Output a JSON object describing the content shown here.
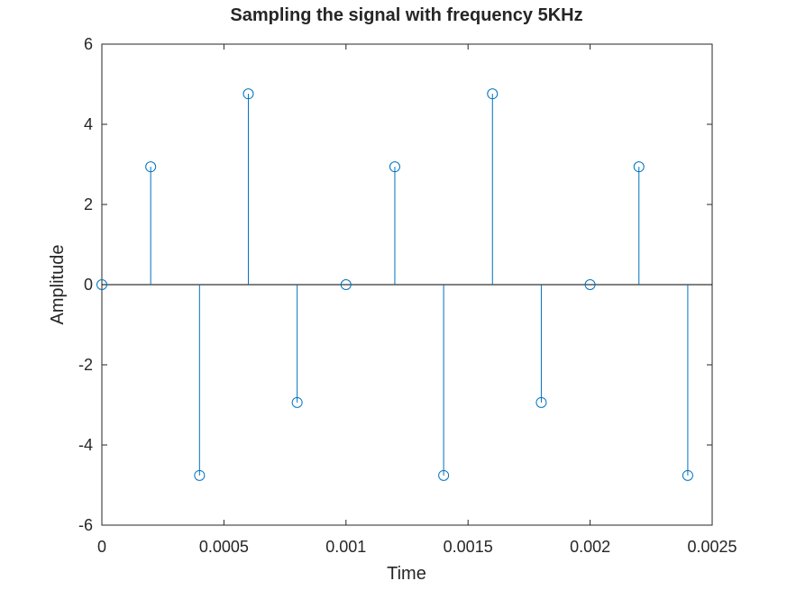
{
  "chart_data": {
    "type": "stem",
    "title": "Sampling the signal with frequency 5KHz",
    "xlabel": "Time",
    "ylabel": "Amplitude",
    "xlim": [
      0,
      0.0025
    ],
    "ylim": [
      -6,
      6
    ],
    "xticks": [
      "0",
      "0.0005",
      "0.001",
      "0.0015",
      "0.002",
      "0.0025"
    ],
    "yticks": [
      "-6",
      "-4",
      "-2",
      "0",
      "2",
      "4",
      "6"
    ],
    "grid": false,
    "baseline": 0,
    "series": [
      {
        "x": [
          0,
          0.0002,
          0.0004,
          0.0006,
          0.0008,
          0.001,
          0.0012,
          0.0014,
          0.0016,
          0.0018,
          0.002,
          0.0022,
          0.0024
        ],
        "y": [
          0,
          2.94,
          -4.76,
          4.76,
          -2.94,
          0,
          2.94,
          -4.76,
          4.76,
          -2.94,
          0,
          2.94,
          -4.76
        ],
        "color": "#0072bd",
        "marker": "circle-open"
      }
    ]
  }
}
